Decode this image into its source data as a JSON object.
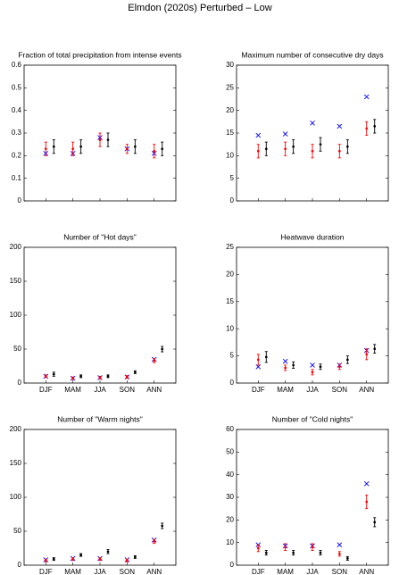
{
  "title": "Elmdon (2020s) Perturbed – Low",
  "chart_data": [
    {
      "type": "errorbar",
      "title": "Fraction of total precipitation from intense events",
      "categories": [
        null,
        null,
        null,
        null,
        null
      ],
      "ylim": [
        0,
        0.6
      ],
      "yticks": [
        0,
        0.1,
        0.2,
        0.3,
        0.4,
        0.5,
        0.6
      ],
      "series": [
        {
          "color": "#0000ff",
          "marker": "x",
          "values": [
            0.21,
            0.21,
            0.28,
            0.23,
            0.21
          ]
        },
        {
          "color": "#ff0000",
          "values": [
            0.23,
            0.23,
            0.27,
            0.23,
            0.22
          ],
          "errors": [
            0.03,
            0.03,
            0.03,
            0.02,
            0.03
          ]
        },
        {
          "color": "#000000",
          "values": [
            0.24,
            0.24,
            0.27,
            0.24,
            0.23
          ],
          "errors": [
            0.03,
            0.03,
            0.03,
            0.03,
            0.03
          ]
        }
      ]
    },
    {
      "type": "errorbar",
      "title": "Maximum number of consecutive dry days",
      "categories": [
        null,
        null,
        null,
        null,
        null
      ],
      "ylim": [
        0,
        30
      ],
      "yticks": [
        0,
        5,
        10,
        15,
        20,
        25,
        30
      ],
      "series": [
        {
          "color": "#0000ff",
          "marker": "x",
          "values": [
            14.5,
            14.8,
            17.2,
            16.5,
            23
          ]
        },
        {
          "color": "#ff0000",
          "values": [
            11,
            11.5,
            11,
            11,
            16
          ],
          "errors": [
            1.5,
            1.5,
            1.5,
            1.5,
            1.5
          ]
        },
        {
          "color": "#000000",
          "values": [
            11.5,
            12,
            12.5,
            12,
            16.5
          ],
          "errors": [
            1.5,
            1.5,
            1.5,
            1.5,
            1.5
          ]
        }
      ]
    },
    {
      "type": "errorbar",
      "title": "Number of \"Hot days\"",
      "categories": [
        "DJF",
        "MAM",
        "JJA",
        "SON",
        "ANN"
      ],
      "ylim": [
        0,
        200
      ],
      "yticks": [
        0,
        50,
        100,
        150,
        200
      ],
      "series": [
        {
          "color": "#0000ff",
          "marker": "x",
          "values": [
            10,
            7,
            8,
            9,
            35
          ]
        },
        {
          "color": "#ff0000",
          "values": [
            10,
            7,
            8,
            9,
            33
          ],
          "errors": [
            2,
            2,
            2,
            2,
            3
          ]
        },
        {
          "color": "#000000",
          "values": [
            13,
            10,
            10,
            16,
            50
          ],
          "errors": [
            3,
            2,
            2,
            2,
            4
          ]
        }
      ]
    },
    {
      "type": "errorbar",
      "title": "Heatwave duration",
      "categories": [
        "DJF",
        "MAM",
        "JJA",
        "SON",
        "ANN"
      ],
      "ylim": [
        0,
        25
      ],
      "yticks": [
        0,
        5,
        10,
        15,
        20,
        25
      ],
      "series": [
        {
          "color": "#0000ff",
          "marker": "x",
          "values": [
            3,
            4,
            3.3,
            3.3,
            6
          ]
        },
        {
          "color": "#ff0000",
          "values": [
            4.3,
            2.8,
            2,
            3,
            5.3
          ],
          "errors": [
            1,
            0.5,
            0.5,
            0.5,
            1
          ]
        },
        {
          "color": "#000000",
          "values": [
            4.8,
            3.3,
            3,
            4.3,
            6.3
          ],
          "errors": [
            1,
            0.6,
            0.5,
            0.7,
            0.8
          ]
        }
      ]
    },
    {
      "type": "errorbar",
      "title": "Number of \"Warm nights\"",
      "categories": [
        "DJF",
        "MAM",
        "JJA",
        "SON",
        "ANN"
      ],
      "ylim": [
        0,
        200
      ],
      "yticks": [
        0,
        50,
        100,
        150,
        200
      ],
      "series": [
        {
          "color": "#0000ff",
          "marker": "x",
          "values": [
            8,
            10,
            10,
            8,
            37
          ]
        },
        {
          "color": "#ff0000",
          "values": [
            7,
            9,
            9,
            7,
            35
          ],
          "errors": [
            2,
            2,
            2,
            2,
            3
          ]
        },
        {
          "color": "#000000",
          "values": [
            9,
            15,
            20,
            12,
            58
          ],
          "errors": [
            2,
            2,
            3,
            2,
            4
          ]
        }
      ]
    },
    {
      "type": "errorbar",
      "title": "Number of \"Cold nights\"",
      "categories": [
        "DJF",
        "MAM",
        "JJA",
        "SON",
        "ANN"
      ],
      "ylim": [
        0,
        60
      ],
      "yticks": [
        0,
        10,
        20,
        30,
        40,
        50,
        60
      ],
      "series": [
        {
          "color": "#0000ff",
          "marker": "x",
          "values": [
            9,
            8.5,
            8.5,
            9,
            36
          ]
        },
        {
          "color": "#ff0000",
          "values": [
            7.5,
            8,
            8,
            5,
            28
          ],
          "errors": [
            1.5,
            1.5,
            1.5,
            1,
            3
          ]
        },
        {
          "color": "#000000",
          "values": [
            5.5,
            5.5,
            5.5,
            3,
            19
          ],
          "errors": [
            1,
            1,
            1,
            0.8,
            2
          ]
        }
      ]
    }
  ]
}
